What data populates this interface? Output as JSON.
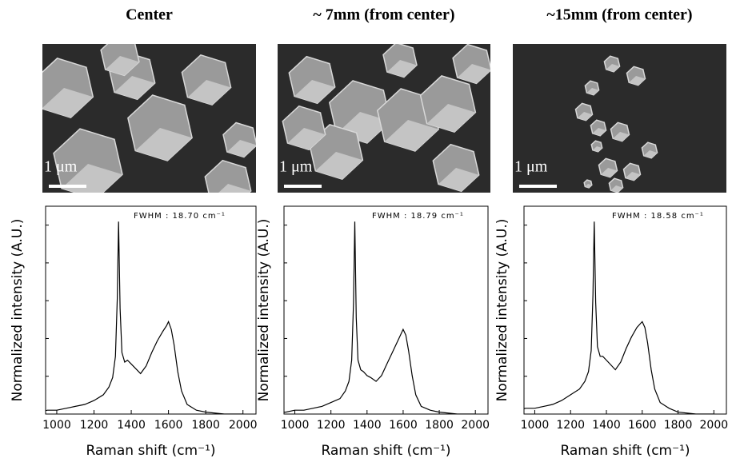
{
  "chart_data": [
    {
      "type": "line",
      "title": "Center",
      "image_label": "1 μm",
      "annotation": "FWHM : 18.70 cm⁻¹",
      "xlabel": "Raman shift (cm⁻¹)",
      "ylabel": "Normalized intensity (A.U.)",
      "color": "#000000",
      "xlim": [
        940,
        2070
      ],
      "ylim": [
        0,
        1.08
      ],
      "xticks": [
        1000,
        1200,
        1400,
        1600,
        1800,
        2000
      ],
      "x": [
        900,
        950,
        1000,
        1050,
        1100,
        1150,
        1200,
        1250,
        1280,
        1300,
        1315,
        1325,
        1332,
        1340,
        1350,
        1365,
        1380,
        1400,
        1420,
        1450,
        1480,
        1510,
        1540,
        1570,
        1590,
        1600,
        1615,
        1630,
        1650,
        1670,
        1700,
        1750,
        1800,
        1900,
        2000
      ],
      "values": [
        0.01,
        0.02,
        0.02,
        0.03,
        0.04,
        0.05,
        0.07,
        0.1,
        0.14,
        0.19,
        0.3,
        0.6,
        1.0,
        0.55,
        0.32,
        0.27,
        0.28,
        0.26,
        0.24,
        0.21,
        0.25,
        0.32,
        0.38,
        0.43,
        0.46,
        0.48,
        0.44,
        0.36,
        0.22,
        0.12,
        0.05,
        0.02,
        0.01,
        0.0,
        0.0
      ]
    },
    {
      "type": "line",
      "title": "~ 7mm (from center)",
      "image_label": "1 μm",
      "annotation": "FWHM : 18.79 cm⁻¹",
      "xlabel": "Raman shift (cm⁻¹)",
      "ylabel": "Normalized intensity (A.U.)",
      "color": "#000000",
      "xlim": [
        940,
        2070
      ],
      "ylim": [
        0,
        1.08
      ],
      "xticks": [
        1000,
        1200,
        1400,
        1600,
        1800,
        2000
      ],
      "x": [
        900,
        950,
        1000,
        1050,
        1100,
        1150,
        1200,
        1250,
        1280,
        1300,
        1315,
        1325,
        1332,
        1340,
        1350,
        1365,
        1380,
        1400,
        1420,
        1450,
        1480,
        1510,
        1540,
        1570,
        1590,
        1600,
        1615,
        1630,
        1650,
        1670,
        1700,
        1750,
        1800,
        1900,
        2000
      ],
      "values": [
        0.01,
        0.01,
        0.02,
        0.02,
        0.03,
        0.04,
        0.06,
        0.08,
        0.12,
        0.17,
        0.28,
        0.58,
        1.0,
        0.5,
        0.28,
        0.23,
        0.22,
        0.2,
        0.19,
        0.17,
        0.2,
        0.26,
        0.32,
        0.38,
        0.42,
        0.44,
        0.41,
        0.33,
        0.2,
        0.1,
        0.04,
        0.02,
        0.01,
        0.0,
        0.0
      ]
    },
    {
      "type": "line",
      "title": "~15mm (from center)",
      "image_label": "1 μm",
      "annotation": "FWHM : 18.58 cm⁻¹",
      "xlabel": "Raman shift (cm⁻¹)",
      "ylabel": "Normalized intensity (A.U.)",
      "color": "#000000",
      "xlim": [
        940,
        2070
      ],
      "ylim": [
        0,
        1.08
      ],
      "xticks": [
        1000,
        1200,
        1400,
        1600,
        1800,
        2000
      ],
      "x": [
        900,
        950,
        1000,
        1050,
        1100,
        1150,
        1200,
        1250,
        1280,
        1300,
        1315,
        1325,
        1332,
        1340,
        1350,
        1365,
        1380,
        1400,
        1420,
        1450,
        1480,
        1510,
        1540,
        1570,
        1590,
        1600,
        1615,
        1630,
        1650,
        1670,
        1700,
        1750,
        1800,
        1900,
        2000
      ],
      "values": [
        0.02,
        0.03,
        0.03,
        0.04,
        0.05,
        0.07,
        0.1,
        0.13,
        0.17,
        0.22,
        0.33,
        0.62,
        1.0,
        0.58,
        0.35,
        0.3,
        0.3,
        0.28,
        0.26,
        0.23,
        0.27,
        0.34,
        0.4,
        0.45,
        0.47,
        0.48,
        0.45,
        0.37,
        0.23,
        0.13,
        0.06,
        0.03,
        0.01,
        0.0,
        0.0
      ]
    }
  ]
}
